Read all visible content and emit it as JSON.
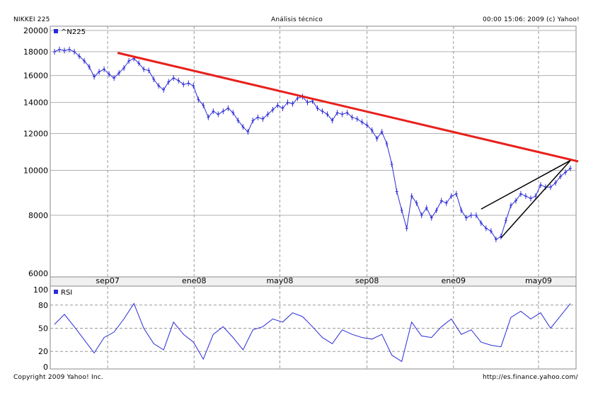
{
  "header": {
    "left": "NIKKEI 225",
    "center": "Análisis técnico",
    "right": "00:00 15:06: 2009 (c) Yahoo!"
  },
  "footer": {
    "left": "Copyright 2009 Yahoo! Inc.",
    "right": "http://es.finance.yahoo.com/"
  },
  "colors": {
    "price": "#2b2bd6",
    "rsi": "#2b2bd6",
    "trend": "#e8201c",
    "wedge": "#000000",
    "grid": "#999999"
  },
  "chart_data": [
    {
      "type": "line",
      "name": "price",
      "legend": "^N225",
      "legend_position": "top-left",
      "scale": "log",
      "ylim": [
        6000,
        20000
      ],
      "yticks": [
        6000,
        8000,
        10000,
        12000,
        14000,
        16000,
        18000,
        20000
      ],
      "xlim": [
        "2007-06-18",
        "2009-06-15"
      ],
      "xticks": [
        {
          "date": "2007-09-01",
          "label": "sep07"
        },
        {
          "date": "2008-01-01",
          "label": "ene08"
        },
        {
          "date": "2008-05-01",
          "label": "may08"
        },
        {
          "date": "2008-09-01",
          "label": "sep08"
        },
        {
          "date": "2009-01-01",
          "label": "ene09"
        },
        {
          "date": "2009-05-01",
          "label": "may09"
        }
      ],
      "grid": true,
      "points": [
        [
          "2007-06-18",
          18000
        ],
        [
          "2007-06-25",
          18200
        ],
        [
          "2007-07-02",
          18100
        ],
        [
          "2007-07-09",
          18200
        ],
        [
          "2007-07-16",
          18000
        ],
        [
          "2007-07-23",
          17600
        ],
        [
          "2007-07-30",
          17200
        ],
        [
          "2007-08-06",
          16700
        ],
        [
          "2007-08-13",
          15900
        ],
        [
          "2007-08-20",
          16300
        ],
        [
          "2007-08-27",
          16500
        ],
        [
          "2007-09-03",
          16100
        ],
        [
          "2007-09-10",
          15800
        ],
        [
          "2007-09-17",
          16200
        ],
        [
          "2007-09-24",
          16600
        ],
        [
          "2007-10-01",
          17200
        ],
        [
          "2007-10-08",
          17400
        ],
        [
          "2007-10-15",
          17000
        ],
        [
          "2007-10-22",
          16500
        ],
        [
          "2007-10-29",
          16400
        ],
        [
          "2007-11-05",
          15700
        ],
        [
          "2007-11-12",
          15200
        ],
        [
          "2007-11-19",
          14900
        ],
        [
          "2007-11-26",
          15500
        ],
        [
          "2007-12-03",
          15800
        ],
        [
          "2007-12-10",
          15600
        ],
        [
          "2007-12-17",
          15300
        ],
        [
          "2007-12-24",
          15400
        ],
        [
          "2007-12-31",
          15200
        ],
        [
          "2008-01-07",
          14200
        ],
        [
          "2008-01-14",
          13800
        ],
        [
          "2008-01-21",
          13000
        ],
        [
          "2008-01-28",
          13400
        ],
        [
          "2008-02-04",
          13200
        ],
        [
          "2008-02-11",
          13400
        ],
        [
          "2008-02-18",
          13600
        ],
        [
          "2008-02-25",
          13300
        ],
        [
          "2008-03-03",
          12800
        ],
        [
          "2008-03-10",
          12400
        ],
        [
          "2008-03-17",
          12100
        ],
        [
          "2008-03-24",
          12800
        ],
        [
          "2008-03-31",
          13000
        ],
        [
          "2008-04-07",
          12900
        ],
        [
          "2008-04-14",
          13200
        ],
        [
          "2008-04-21",
          13500
        ],
        [
          "2008-04-28",
          13800
        ],
        [
          "2008-05-05",
          13600
        ],
        [
          "2008-05-12",
          14000
        ],
        [
          "2008-05-19",
          13900
        ],
        [
          "2008-05-26",
          14300
        ],
        [
          "2008-06-02",
          14400
        ],
        [
          "2008-06-09",
          14000
        ],
        [
          "2008-06-16",
          14100
        ],
        [
          "2008-06-23",
          13600
        ],
        [
          "2008-06-30",
          13400
        ],
        [
          "2008-07-07",
          13200
        ],
        [
          "2008-07-14",
          12800
        ],
        [
          "2008-07-21",
          13300
        ],
        [
          "2008-07-28",
          13200
        ],
        [
          "2008-08-04",
          13300
        ],
        [
          "2008-08-11",
          13000
        ],
        [
          "2008-08-18",
          12900
        ],
        [
          "2008-08-25",
          12700
        ],
        [
          "2008-09-01",
          12500
        ],
        [
          "2008-09-08",
          12200
        ],
        [
          "2008-09-15",
          11700
        ],
        [
          "2008-09-22",
          12100
        ],
        [
          "2008-09-29",
          11400
        ],
        [
          "2008-10-06",
          10300
        ],
        [
          "2008-10-13",
          9000
        ],
        [
          "2008-10-20",
          8200
        ],
        [
          "2008-10-27",
          7500
        ],
        [
          "2008-11-03",
          8800
        ],
        [
          "2008-11-10",
          8500
        ],
        [
          "2008-11-17",
          8000
        ],
        [
          "2008-11-24",
          8300
        ],
        [
          "2008-12-01",
          7900
        ],
        [
          "2008-12-08",
          8200
        ],
        [
          "2008-12-15",
          8600
        ],
        [
          "2008-12-22",
          8500
        ],
        [
          "2008-12-29",
          8800
        ],
        [
          "2009-01-05",
          8900
        ],
        [
          "2009-01-12",
          8200
        ],
        [
          "2009-01-19",
          7900
        ],
        [
          "2009-01-26",
          8000
        ],
        [
          "2009-02-02",
          8000
        ],
        [
          "2009-02-09",
          7700
        ],
        [
          "2009-02-16",
          7500
        ],
        [
          "2009-02-23",
          7400
        ],
        [
          "2009-03-02",
          7100
        ],
        [
          "2009-03-09",
          7200
        ],
        [
          "2009-03-16",
          7800
        ],
        [
          "2009-03-23",
          8400
        ],
        [
          "2009-03-30",
          8600
        ],
        [
          "2009-04-06",
          8900
        ],
        [
          "2009-04-13",
          8800
        ],
        [
          "2009-04-20",
          8700
        ],
        [
          "2009-04-27",
          8800
        ],
        [
          "2009-05-04",
          9300
        ],
        [
          "2009-05-11",
          9200
        ],
        [
          "2009-05-18",
          9200
        ],
        [
          "2009-05-25",
          9400
        ],
        [
          "2009-06-01",
          9700
        ],
        [
          "2009-06-08",
          9900
        ],
        [
          "2009-06-15",
          10100
        ]
      ],
      "annotations": [
        {
          "type": "trendline",
          "color": "trend",
          "from": [
            "2007-09-15",
            17900
          ],
          "to": [
            "2009-06-26",
            10450
          ]
        },
        {
          "type": "trendline",
          "color": "wedge",
          "from": [
            "2009-02-09",
            8250
          ],
          "to": [
            "2009-06-15",
            10500
          ]
        },
        {
          "type": "trendline",
          "color": "wedge",
          "from": [
            "2009-03-09",
            7150
          ],
          "to": [
            "2009-06-15",
            10500
          ]
        }
      ]
    },
    {
      "type": "line",
      "name": "rsi",
      "legend": "RSI",
      "legend_position": "top-left",
      "ylim": [
        0,
        100
      ],
      "yticks": [
        0,
        20,
        50,
        80,
        100
      ],
      "dashed_levels": [
        20,
        50,
        80
      ],
      "xlim": [
        "2007-06-18",
        "2009-06-15"
      ],
      "points": [
        [
          "2007-06-18",
          55
        ],
        [
          "2007-07-02",
          68
        ],
        [
          "2007-07-16",
          52
        ],
        [
          "2007-07-30",
          35
        ],
        [
          "2007-08-13",
          18
        ],
        [
          "2007-08-27",
          38
        ],
        [
          "2007-09-10",
          45
        ],
        [
          "2007-09-24",
          62
        ],
        [
          "2007-10-08",
          82
        ],
        [
          "2007-10-22",
          50
        ],
        [
          "2007-11-05",
          30
        ],
        [
          "2007-11-19",
          22
        ],
        [
          "2007-12-03",
          58
        ],
        [
          "2007-12-17",
          42
        ],
        [
          "2007-12-31",
          32
        ],
        [
          "2008-01-14",
          10
        ],
        [
          "2008-01-28",
          42
        ],
        [
          "2008-02-11",
          52
        ],
        [
          "2008-02-25",
          38
        ],
        [
          "2008-03-10",
          22
        ],
        [
          "2008-03-24",
          48
        ],
        [
          "2008-04-07",
          52
        ],
        [
          "2008-04-21",
          62
        ],
        [
          "2008-05-05",
          58
        ],
        [
          "2008-05-19",
          70
        ],
        [
          "2008-06-02",
          65
        ],
        [
          "2008-06-16",
          52
        ],
        [
          "2008-06-30",
          38
        ],
        [
          "2008-07-14",
          30
        ],
        [
          "2008-07-28",
          48
        ],
        [
          "2008-08-11",
          42
        ],
        [
          "2008-08-25",
          38
        ],
        [
          "2008-09-08",
          36
        ],
        [
          "2008-09-22",
          42
        ],
        [
          "2008-10-06",
          15
        ],
        [
          "2008-10-20",
          7
        ],
        [
          "2008-11-03",
          58
        ],
        [
          "2008-11-17",
          40
        ],
        [
          "2008-12-01",
          38
        ],
        [
          "2008-12-15",
          52
        ],
        [
          "2008-12-29",
          62
        ],
        [
          "2009-01-12",
          42
        ],
        [
          "2009-01-26",
          48
        ],
        [
          "2009-02-09",
          32
        ],
        [
          "2009-02-23",
          28
        ],
        [
          "2009-03-09",
          26
        ],
        [
          "2009-03-23",
          64
        ],
        [
          "2009-04-06",
          72
        ],
        [
          "2009-04-20",
          62
        ],
        [
          "2009-05-04",
          70
        ],
        [
          "2009-05-18",
          50
        ],
        [
          "2009-06-01",
          66
        ],
        [
          "2009-06-15",
          82
        ]
      ]
    }
  ]
}
